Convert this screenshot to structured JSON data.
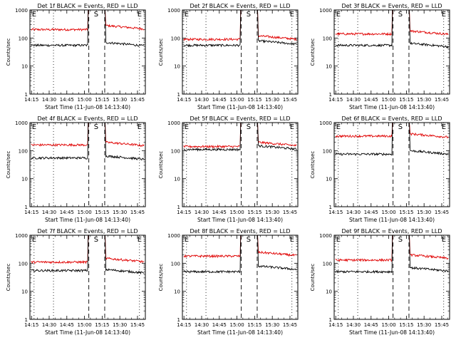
{
  "chart_data": {
    "type": "line",
    "common": {
      "xlabel": "Start Time (11-Jun-08 14:13:40)",
      "ylabel": "Counts/sec",
      "xticks": [
        "14:15",
        "14:30",
        "14:45",
        "15:00",
        "15:15",
        "15:30",
        "15:45"
      ],
      "yticks": [
        "1",
        "10",
        "100",
        "1000"
      ],
      "ylim": [
        1,
        1000
      ],
      "ylog": true,
      "xlim_minutes_after_14_13_40": [
        0,
        98
      ],
      "marker_S": "S",
      "marker_E": "E",
      "series_colors": {
        "events": "#000000",
        "lld": "#e00000"
      }
    },
    "panels": [
      {
        "title": "Det 1f BLACK = Events, RED = LLD",
        "events": [
          55,
          70
        ],
        "lld": [
          200,
          280
        ],
        "s_dash": 50,
        "s_dash2": 63.5,
        "e_start_dot": 3.5,
        "e_end_dot": 93,
        "dots": [
          20,
          51
        ]
      },
      {
        "title": "Det 2f BLACK = Events, RED = LLD",
        "events": [
          55,
          80
        ],
        "lld": [
          90,
          120
        ],
        "s_dash": 50,
        "s_dash2": 63.5,
        "e_start_dot": 3.5,
        "e_end_dot": 93,
        "dots": [
          20,
          51
        ]
      },
      {
        "title": "Det 3f BLACK = Events, RED = LLD",
        "events": [
          55,
          65
        ],
        "lld": [
          140,
          180
        ],
        "s_dash": 50,
        "s_dash2": 63.5,
        "e_start_dot": 3.5,
        "e_end_dot": 93,
        "dots": [
          20,
          51
        ]
      },
      {
        "title": "Det 4f BLACK = Events, RED = LLD",
        "events": [
          55,
          65
        ],
        "lld": [
          160,
          200
        ],
        "s_dash": 50,
        "s_dash2": 63.5,
        "e_start_dot": 3.5,
        "e_end_dot": 93,
        "dots": [
          20,
          51
        ]
      },
      {
        "title": "Det 5f BLACK = Events, RED = LLD",
        "events": [
          110,
          150
        ],
        "lld": [
          140,
          200
        ],
        "s_dash": 50,
        "s_dash2": 63.5,
        "e_start_dot": 3.5,
        "e_end_dot": 93,
        "dots": [
          20,
          51
        ]
      },
      {
        "title": "Det 6f BLACK = Events, RED = LLD",
        "events": [
          75,
          100
        ],
        "lld": [
          330,
          400
        ],
        "s_dash": 50,
        "s_dash2": 63.5,
        "e_start_dot": 3.5,
        "e_end_dot": 93,
        "dots": [
          20,
          51
        ]
      },
      {
        "title": "Det 7f BLACK = Events, RED = LLD",
        "events": [
          55,
          60
        ],
        "lld": [
          110,
          150
        ],
        "s_dash": 50,
        "s_dash2": 63.5,
        "e_start_dot": 3.5,
        "e_end_dot": 93,
        "dots": [
          20,
          51
        ]
      },
      {
        "title": "Det 8f BLACK = Events, RED = LLD",
        "events": [
          50,
          80
        ],
        "lld": [
          180,
          250
        ],
        "s_dash": 50,
        "s_dash2": 63.5,
        "e_start_dot": 3.5,
        "e_end_dot": 93,
        "dots": [
          20,
          51
        ]
      },
      {
        "title": "Det 9f BLACK = Events, RED = LLD",
        "events": [
          50,
          70
        ],
        "lld": [
          130,
          200
        ],
        "s_dash": 50,
        "s_dash2": 63.5,
        "e_start_dot": 3.5,
        "e_end_dot": 93,
        "dots": [
          20,
          51
        ]
      }
    ]
  }
}
